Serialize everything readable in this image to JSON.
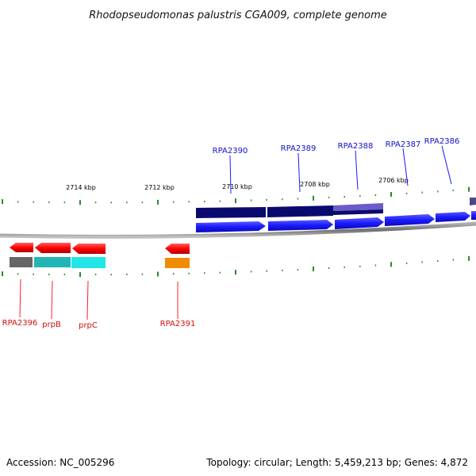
{
  "title": "Rhodopseudomonas palustris CGA009, complete genome",
  "footer": {
    "accession": "Accession: NC_005296",
    "summary": "Topology: circular; Length: 5,459,213 bp; Genes: 4,872"
  },
  "scale_labels": [
    "2714 kbp",
    "2712 kbp",
    "2710 kbp",
    "2708 kbp",
    "2706 kbp"
  ],
  "forward_genes": [
    "RPA2390",
    "RPA2389",
    "RPA2388",
    "RPA2387",
    "RPA2386"
  ],
  "reverse_genes": [
    "RPA2396",
    "prpB",
    "prpC",
    "RPA2391"
  ],
  "colors": {
    "forward_gene": "#1a1aff",
    "reverse_gene": "#ff0000",
    "forward_cds_dark": "#0a0a6e",
    "forward_cds_light": "#6b5bc8",
    "reverse_cds_gray": "#666666",
    "reverse_cds_teal": "#22b5b5",
    "reverse_cds_cyan": "#22e5e5",
    "reverse_cds_orange": "#f08c00",
    "tick": "#2a8a2a",
    "backbone": "#7a7a7a",
    "forward_label": "#1010c8",
    "reverse_label": "#d01010"
  }
}
